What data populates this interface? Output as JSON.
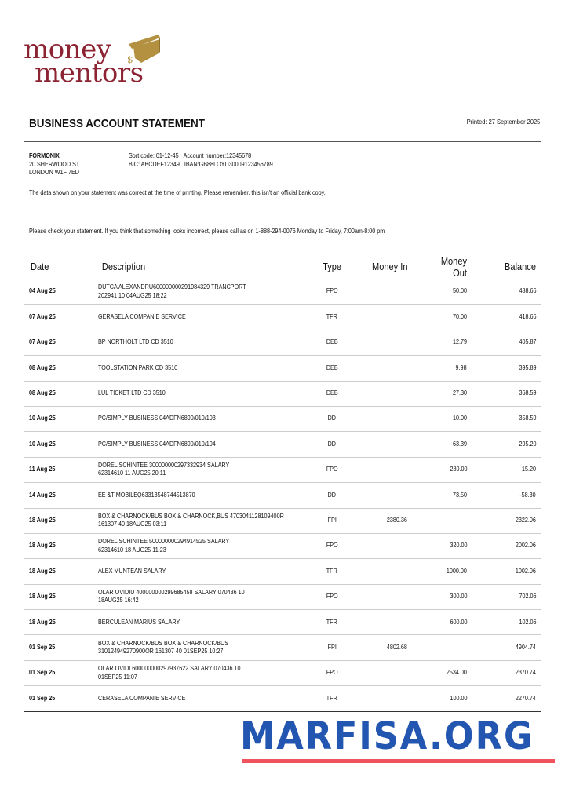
{
  "logo": {
    "line1": "money",
    "line2": "mentors",
    "symbol": "$",
    "brand_color": "#8c2433",
    "cap_color": "#b39140"
  },
  "header": {
    "title": "BUSINESS ACCOUNT STATEMENT",
    "printed": "Printed: 27 September 2025"
  },
  "account": {
    "name": "FORMONIX",
    "address1": "20 SHERWOOD ST.",
    "address2": "LONDON W1F 7ED",
    "sort_code": "Sort code: 01-12-45",
    "account_number": "Account number:12345678",
    "bic": "BIC: ABCDEF12349",
    "iban": "IBAN:GB88LOYD30009123456789"
  },
  "notices": {
    "disclaimer": "The data shown on your statement was correct at the time of printing. Please remember, this isn't an official bank copy.",
    "check": "Please check your statement. If you think that something looks incorrect, please call as on 1-888-294-0076 Monday to Friday, 7:00am-8:00 pm"
  },
  "table": {
    "columns": [
      "Date",
      "Description",
      "Type",
      "Money In",
      "Money Out",
      "Balance"
    ],
    "rows": [
      {
        "date": "04 Aug 25",
        "desc1": "DUTCA ALEXANDRU600000000291984329 TRANCPORT",
        "desc2": "202941 10 04AUG25 18:22",
        "type": "FPO",
        "in": "",
        "out": "50.00",
        "balance": "488.66"
      },
      {
        "date": "07 Aug 25",
        "desc1": "GERASELA COMPANIE SERVICE",
        "desc2": "",
        "type": "TFR",
        "in": "",
        "out": "70.00",
        "balance": "418.66"
      },
      {
        "date": "07 Aug 25",
        "desc1": "BP NORTHOLT LTD CD 3510",
        "desc2": "",
        "type": "DEB",
        "in": "",
        "out": "12.79",
        "balance": "405.87"
      },
      {
        "date": "08 Aug 25",
        "desc1": "TOOLSTATION PARK CD 3510",
        "desc2": "",
        "type": "DEB",
        "in": "",
        "out": "9.98",
        "balance": "395.89"
      },
      {
        "date": "08 Aug 25",
        "desc1": "LUL TICKET LTD CD 3510",
        "desc2": "",
        "type": "DEB",
        "in": "",
        "out": "27.30",
        "balance": "368.59"
      },
      {
        "date": "10 Aug 25",
        "desc1": "PC/SIMPLY BUSINESS 04ADFN6890/010/103",
        "desc2": "",
        "type": "DD",
        "in": "",
        "out": "10.00",
        "balance": "358.59"
      },
      {
        "date": "10 Aug 25",
        "desc1": "PC/SIMPLY BUSINESS 04ADFN6890/010/104",
        "desc2": "",
        "type": "DD",
        "in": "",
        "out": "63.39",
        "balance": "295.20"
      },
      {
        "date": "11 Aug 25",
        "desc1": "DOREL SCHINTEE 300000000297332934 SALARY",
        "desc2": "62314610 11 AUG25 20:11",
        "type": "FPO",
        "in": "",
        "out": "280.00",
        "balance": "15.20"
      },
      {
        "date": "14 Aug 25",
        "desc1": "EE &T-MOBILEQ63313548744513870",
        "desc2": "",
        "type": "DD",
        "in": "",
        "out": "73.50",
        "balance": "-58.30"
      },
      {
        "date": "18 Aug 25",
        "desc1": "BOX & CHARNOCK/BUS BOX & CHARNOCK,BUS 4703041128109400R",
        "desc2": "161307 40 18AUG25 03:11",
        "type": "FPI",
        "in": "2380.36",
        "out": "",
        "balance": "2322.06"
      },
      {
        "date": "18 Aug 25",
        "desc1": "DOREL SCHINTEE 500000000294914525 SALARY",
        "desc2": "62314610 18 AUG25 11:23",
        "type": "FPO",
        "in": "",
        "out": "320.00",
        "balance": "2002.06"
      },
      {
        "date": "18 Aug 25",
        "desc1": "ALEX MUNTEAN SALARY",
        "desc2": "",
        "type": "TFR",
        "in": "",
        "out": "1000.00",
        "balance": "1002.06"
      },
      {
        "date": "18 Aug 25",
        "desc1": "OLAR OVIDIU 400000000299685458 SALARY 070436 10",
        "desc2": "18AUG25 16:42",
        "type": "FPO",
        "in": "",
        "out": "300.00",
        "balance": "702.06"
      },
      {
        "date": "18 Aug 25",
        "desc1": "BERCULEAN MARIUS SALARY",
        "desc2": "",
        "type": "TFR",
        "in": "",
        "out": "600.00",
        "balance": "102.06"
      },
      {
        "date": "01 Sep 25",
        "desc1": "BOX & CHARNOCK/BUS BOX & CHARNOCK/BUS",
        "desc2": "310124949270900OR 161307 40 01SEP25 10:27",
        "type": "FPI",
        "in": "4802.68",
        "out": "",
        "balance": "4904.74"
      },
      {
        "date": "01 Sep 25",
        "desc1": "OLAR OVIDI 600000000297937622 SALARY 070436 10",
        "desc2": "01SEP25 11:07",
        "type": "FPO",
        "in": "",
        "out": "2534.00",
        "balance": "2370.74"
      },
      {
        "date": "01 Sep 25",
        "desc1": "CERASELA COMPANIE SERVICE",
        "desc2": "",
        "type": "TFR",
        "in": "",
        "out": "100.00",
        "balance": "2270.74"
      }
    ]
  },
  "watermark": {
    "text": "MARFISA.ORG",
    "color": "#2356b0",
    "underline_color": "#f0535e"
  }
}
